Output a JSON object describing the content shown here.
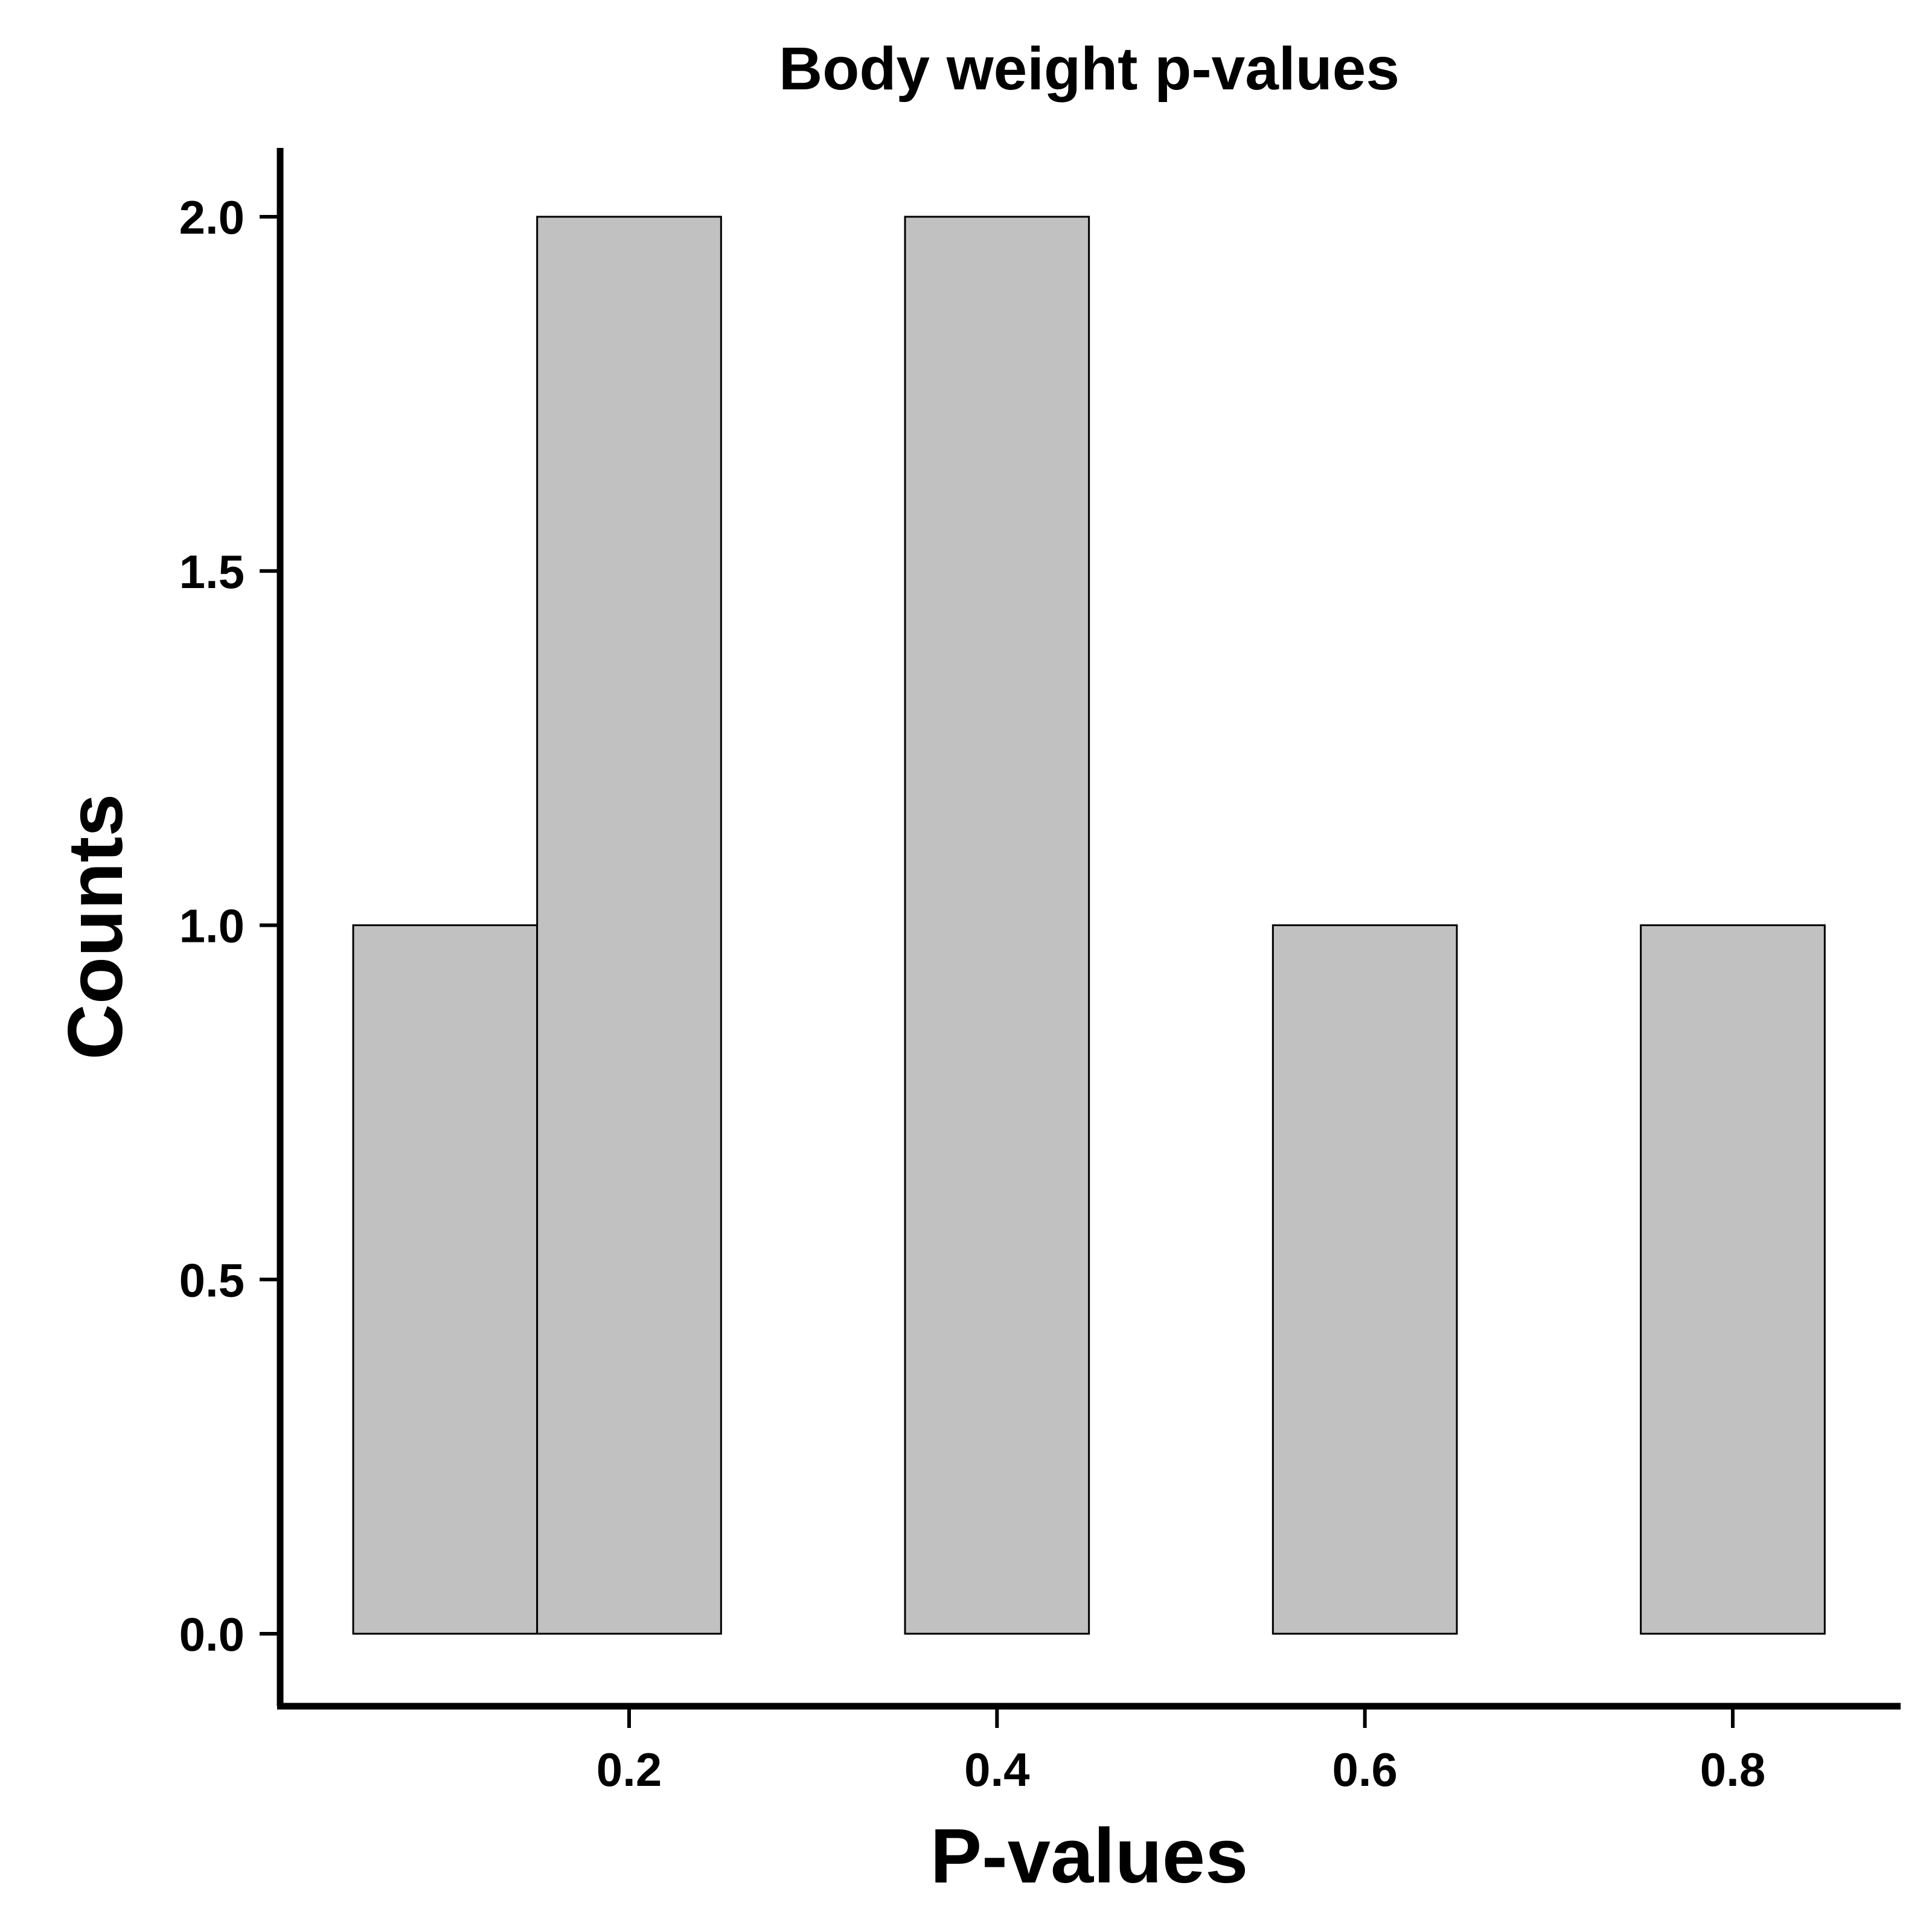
{
  "chart_data": {
    "type": "bar",
    "subtype": "histogram",
    "title": "Body weight p-values",
    "xlabel": "P-values",
    "ylabel": "Counts",
    "x_ticks": [
      "0.2",
      "0.4",
      "0.6",
      "0.8"
    ],
    "x_tick_values": [
      0.2,
      0.4,
      0.6,
      0.8
    ],
    "y_ticks": [
      "0.0",
      "0.5",
      "1.0",
      "1.5",
      "2.0"
    ],
    "y_tick_values": [
      0.0,
      0.5,
      1.0,
      1.5,
      2.0
    ],
    "xlim": [
      0.0,
      0.95
    ],
    "ylim": [
      -0.1,
      2.1
    ],
    "bins": [
      {
        "x0": 0.05,
        "x1": 0.15,
        "count": 1
      },
      {
        "x0": 0.15,
        "x1": 0.25,
        "count": 2
      },
      {
        "x0": 0.25,
        "x1": 0.35,
        "count": 0
      },
      {
        "x0": 0.35,
        "x1": 0.45,
        "count": 2
      },
      {
        "x0": 0.45,
        "x1": 0.55,
        "count": 0
      },
      {
        "x0": 0.55,
        "x1": 0.65,
        "count": 1
      },
      {
        "x0": 0.65,
        "x1": 0.75,
        "count": 0
      },
      {
        "x0": 0.75,
        "x1": 0.85,
        "count": 1
      }
    ],
    "bar_fill": "#c1c1c1",
    "bar_stroke": "#000000",
    "grid": false,
    "legend": "none"
  }
}
